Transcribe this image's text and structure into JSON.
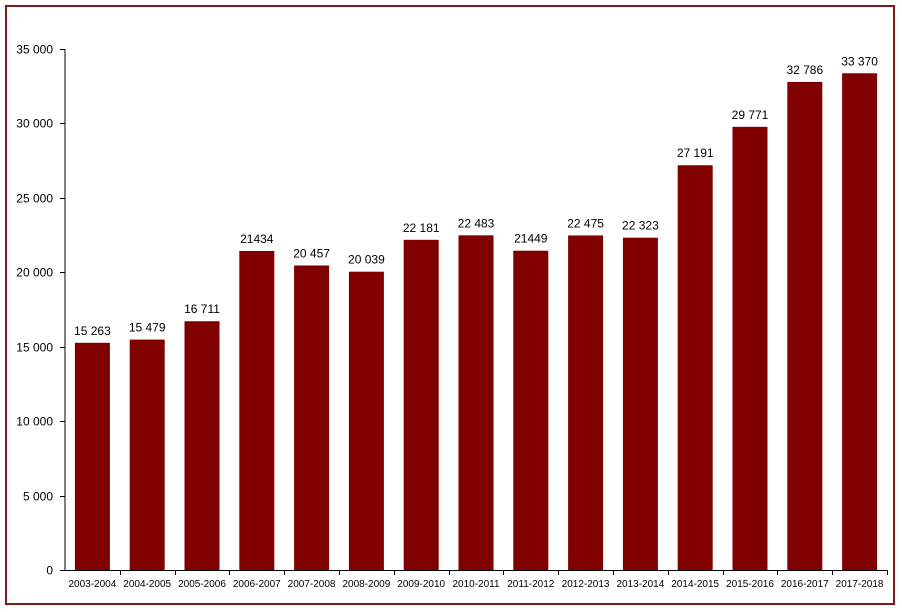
{
  "chart_data": {
    "type": "bar",
    "title": "",
    "xlabel": "",
    "ylabel": "",
    "categories": [
      "2003-2004",
      "2004-2005",
      "2005-2006",
      "2006-2007",
      "2007-2008",
      "2008-2009",
      "2009-2010",
      "2010-2011",
      "2011-2012",
      "2012-2013",
      "2013-2014",
      "2014-2015",
      "2015-2016",
      "2016-2017",
      "2017-2018"
    ],
    "values": [
      15263,
      15479,
      16711,
      21434,
      20457,
      20039,
      22181,
      22483,
      21449,
      22475,
      22323,
      27191,
      29771,
      32786,
      33370
    ],
    "value_labels": [
      "15 263",
      "15 479",
      "16 711",
      "21434",
      "20 457",
      "20 039",
      "22 181",
      "22 483",
      "21449",
      "22 475",
      "22 323",
      "27 191",
      "29 771",
      "32 786",
      "33 370"
    ],
    "ylim": [
      0,
      35000
    ],
    "yticks": [
      0,
      5000,
      10000,
      15000,
      20000,
      25000,
      30000,
      35000
    ],
    "ytick_labels": [
      "0",
      "5 000",
      "10 000",
      "15 000",
      "20 000",
      "25 000",
      "30 000",
      "35 000"
    ],
    "grid": false,
    "legend": "none",
    "colors": {
      "bar": "#800000",
      "frame": "#7f1a1a",
      "axis": "#000000"
    }
  }
}
